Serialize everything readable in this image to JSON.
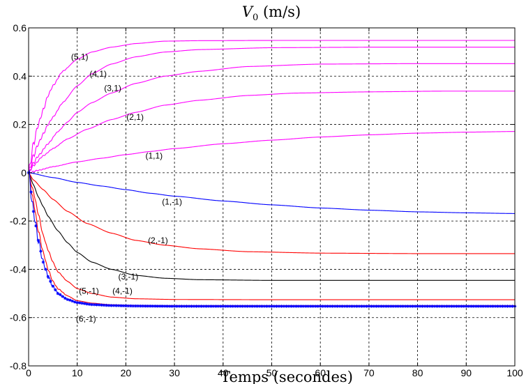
{
  "chart_data": {
    "type": "line",
    "title": "V0 (m/s)",
    "title_main": "V",
    "title_sub": "0",
    "title_rest": " (m/s)",
    "xlabel": "Temps (secondes)",
    "ylabel": "",
    "xlim": [
      0,
      100
    ],
    "ylim": [
      -0.8,
      0.6
    ],
    "xticks": [
      0,
      10,
      20,
      30,
      40,
      50,
      60,
      70,
      80,
      90,
      100
    ],
    "xtick_labels": [
      "0",
      "10",
      "20",
      "30",
      "40",
      "50",
      "60",
      "70",
      "80",
      "90",
      "100"
    ],
    "yticks": [
      -0.8,
      -0.6,
      -0.4,
      -0.2,
      0,
      0.2,
      0.4,
      0.6
    ],
    "ytick_labels": [
      "-0.8",
      "-0.6",
      "-0.4",
      "-0.2",
      "0",
      "0.2",
      "0.4",
      "0.6"
    ],
    "grid": true,
    "grid_style": "dashed",
    "legend": "none",
    "colors": {
      "magenta": "#ff00ff",
      "blue": "#0000ff",
      "red": "#ff0000",
      "black": "#000000"
    },
    "series": [
      {
        "name": "(5,1)",
        "color": "#ff00ff",
        "marker": "none",
        "oscillation": 0.02,
        "label_at": [
          10.5,
          0.48
        ],
        "points": [
          [
            0,
            0
          ],
          [
            1,
            0.12
          ],
          [
            2,
            0.2
          ],
          [
            3,
            0.26
          ],
          [
            4,
            0.32
          ],
          [
            5,
            0.36
          ],
          [
            7,
            0.42
          ],
          [
            10,
            0.47
          ],
          [
            13,
            0.5
          ],
          [
            17,
            0.52
          ],
          [
            22,
            0.535
          ],
          [
            28,
            0.545
          ],
          [
            35,
            0.547
          ],
          [
            50,
            0.548
          ],
          [
            70,
            0.548
          ],
          [
            100,
            0.548
          ]
        ]
      },
      {
        "name": "(4,1)",
        "color": "#ff00ff",
        "marker": "none",
        "oscillation": 0.015,
        "label_at": [
          14.3,
          0.41
        ],
        "points": [
          [
            0,
            0
          ],
          [
            1,
            0.07
          ],
          [
            2,
            0.12
          ],
          [
            3,
            0.16
          ],
          [
            4,
            0.2
          ],
          [
            5,
            0.23
          ],
          [
            7,
            0.29
          ],
          [
            10,
            0.36
          ],
          [
            13,
            0.41
          ],
          [
            17,
            0.45
          ],
          [
            22,
            0.48
          ],
          [
            28,
            0.5
          ],
          [
            35,
            0.51
          ],
          [
            50,
            0.518
          ],
          [
            70,
            0.52
          ],
          [
            100,
            0.52
          ]
        ]
      },
      {
        "name": "(3,1)",
        "color": "#ff00ff",
        "marker": "none",
        "oscillation": 0.01,
        "label_at": [
          17.3,
          0.35
        ],
        "points": [
          [
            0,
            0
          ],
          [
            1,
            0.04
          ],
          [
            2,
            0.07
          ],
          [
            4,
            0.12
          ],
          [
            6,
            0.17
          ],
          [
            8,
            0.21
          ],
          [
            10,
            0.25
          ],
          [
            13,
            0.29
          ],
          [
            17,
            0.33
          ],
          [
            22,
            0.37
          ],
          [
            28,
            0.4
          ],
          [
            35,
            0.42
          ],
          [
            45,
            0.44
          ],
          [
            60,
            0.45
          ],
          [
            80,
            0.452
          ],
          [
            100,
            0.452
          ]
        ]
      },
      {
        "name": "(2,1)",
        "color": "#ff00ff",
        "marker": "none",
        "oscillation": 0.006,
        "label_at": [
          21.9,
          0.23
        ],
        "points": [
          [
            0,
            0
          ],
          [
            1,
            0.03
          ],
          [
            3,
            0.07
          ],
          [
            5,
            0.1
          ],
          [
            8,
            0.14
          ],
          [
            12,
            0.18
          ],
          [
            17,
            0.22
          ],
          [
            22,
            0.25
          ],
          [
            28,
            0.28
          ],
          [
            35,
            0.3
          ],
          [
            45,
            0.32
          ],
          [
            55,
            0.33
          ],
          [
            70,
            0.335
          ],
          [
            85,
            0.338
          ],
          [
            100,
            0.338
          ]
        ]
      },
      {
        "name": "(1,1)",
        "color": "#ff00ff",
        "marker": "none",
        "oscillation": 0.004,
        "label_at": [
          25.8,
          0.07
        ],
        "points": [
          [
            0,
            0
          ],
          [
            2,
            0.01
          ],
          [
            5,
            0.025
          ],
          [
            10,
            0.045
          ],
          [
            15,
            0.06
          ],
          [
            20,
            0.075
          ],
          [
            25,
            0.088
          ],
          [
            30,
            0.1
          ],
          [
            40,
            0.12
          ],
          [
            50,
            0.135
          ],
          [
            60,
            0.148
          ],
          [
            70,
            0.157
          ],
          [
            80,
            0.164
          ],
          [
            90,
            0.168
          ],
          [
            100,
            0.171
          ]
        ]
      },
      {
        "name": "(1,-1)",
        "color": "#0000ff",
        "marker": "none",
        "oscillation": 0,
        "label_at": [
          29.5,
          -0.12
        ],
        "points": [
          [
            0,
            0
          ],
          [
            5,
            -0.02
          ],
          [
            10,
            -0.04
          ],
          [
            15,
            -0.055
          ],
          [
            20,
            -0.07
          ],
          [
            25,
            -0.085
          ],
          [
            30,
            -0.097
          ],
          [
            40,
            -0.117
          ],
          [
            50,
            -0.133
          ],
          [
            60,
            -0.146
          ],
          [
            70,
            -0.155
          ],
          [
            80,
            -0.162
          ],
          [
            90,
            -0.166
          ],
          [
            100,
            -0.169
          ]
        ]
      },
      {
        "name": "(2,-1)",
        "color": "#ff0000",
        "marker": "none",
        "oscillation": 0,
        "label_at": [
          26.6,
          -0.28
        ],
        "points": [
          [
            0,
            0
          ],
          [
            1,
            -0.03
          ],
          [
            3,
            -0.07
          ],
          [
            5,
            -0.11
          ],
          [
            8,
            -0.16
          ],
          [
            12,
            -0.21
          ],
          [
            17,
            -0.25
          ],
          [
            22,
            -0.28
          ],
          [
            28,
            -0.3
          ],
          [
            35,
            -0.315
          ],
          [
            45,
            -0.327
          ],
          [
            60,
            -0.333
          ],
          [
            80,
            -0.335
          ],
          [
            100,
            -0.335
          ]
        ]
      },
      {
        "name": "(3,-1)",
        "color": "#000000",
        "marker": "none",
        "oscillation": 0,
        "label_at": [
          20.5,
          -0.43
        ],
        "points": [
          [
            0,
            0
          ],
          [
            1,
            -0.05
          ],
          [
            2,
            -0.1
          ],
          [
            3,
            -0.14
          ],
          [
            4,
            -0.18
          ],
          [
            6,
            -0.24
          ],
          [
            8,
            -0.29
          ],
          [
            10,
            -0.33
          ],
          [
            13,
            -0.37
          ],
          [
            17,
            -0.4
          ],
          [
            22,
            -0.425
          ],
          [
            28,
            -0.437
          ],
          [
            35,
            -0.443
          ],
          [
            50,
            -0.446
          ],
          [
            70,
            -0.446
          ],
          [
            100,
            -0.446
          ]
        ]
      },
      {
        "name": "(4,-1)",
        "color": "#ff0000",
        "marker": "none",
        "oscillation": 0.01,
        "label_at": [
          19.3,
          -0.49
        ],
        "points": [
          [
            0,
            0
          ],
          [
            1,
            -0.08
          ],
          [
            2,
            -0.17
          ],
          [
            3,
            -0.26
          ],
          [
            4,
            -0.32
          ],
          [
            5,
            -0.37
          ],
          [
            6,
            -0.41
          ],
          [
            8,
            -0.45
          ],
          [
            10,
            -0.48
          ],
          [
            13,
            -0.5
          ],
          [
            17,
            -0.515
          ],
          [
            22,
            -0.522
          ],
          [
            30,
            -0.525
          ],
          [
            50,
            -0.526
          ],
          [
            100,
            -0.526
          ]
        ]
      },
      {
        "name": "(5,-1)",
        "color": "#ff0000",
        "marker": "none",
        "oscillation": 0.015,
        "label_at": [
          12.4,
          -0.49
        ],
        "points": [
          [
            0,
            0
          ],
          [
            1,
            -0.12
          ],
          [
            2,
            -0.24
          ],
          [
            3,
            -0.33
          ],
          [
            4,
            -0.4
          ],
          [
            5,
            -0.45
          ],
          [
            6,
            -0.48
          ],
          [
            8,
            -0.51
          ],
          [
            10,
            -0.53
          ],
          [
            13,
            -0.54
          ],
          [
            17,
            -0.547
          ],
          [
            22,
            -0.55
          ],
          [
            30,
            -0.551
          ],
          [
            50,
            -0.551
          ],
          [
            100,
            -0.551
          ]
        ]
      },
      {
        "name": "(6,-1)",
        "color": "#0000ff",
        "marker": "star",
        "oscillation": 0.03,
        "label_at": [
          11.8,
          -0.605
        ],
        "points": [
          [
            0,
            0
          ],
          [
            1,
            -0.16
          ],
          [
            2,
            -0.28
          ],
          [
            3,
            -0.37
          ],
          [
            4,
            -0.43
          ],
          [
            5,
            -0.47
          ],
          [
            6,
            -0.5
          ],
          [
            8,
            -0.525
          ],
          [
            10,
            -0.538
          ],
          [
            13,
            -0.546
          ],
          [
            17,
            -0.55
          ],
          [
            22,
            -0.552
          ],
          [
            30,
            -0.553
          ],
          [
            50,
            -0.553
          ],
          [
            100,
            -0.553
          ]
        ]
      }
    ]
  }
}
